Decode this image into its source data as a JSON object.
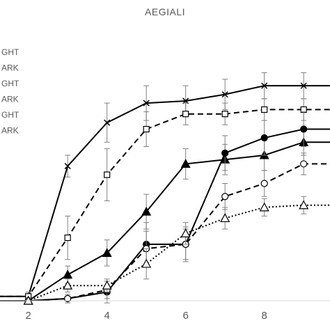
{
  "chart_data": {
    "type": "line",
    "title": "AEGIALI",
    "xlabel": "",
    "ylabel": "",
    "xlim": [
      1.4,
      9.8
    ],
    "ylim": [
      0,
      1.0
    ],
    "x_ticks": [
      "2",
      "4",
      "6",
      "8"
    ],
    "legend": {
      "position": "top-left",
      "entries": [
        "GHT",
        "ARK",
        "GHT",
        "ARK",
        "GHT",
        "ARK"
      ]
    },
    "grid": false,
    "series": [
      {
        "style": "solid",
        "marker": "x",
        "color": "#000000",
        "x": [
          1,
          2,
          3,
          4,
          5,
          6,
          7,
          8,
          9,
          10
        ],
        "y": [
          0.02,
          0.02,
          0.62,
          0.82,
          0.91,
          0.92,
          0.95,
          0.99,
          0.99,
          0.99
        ],
        "err": [
          0,
          0.02,
          0.05,
          0.09,
          0.08,
          0.07,
          0.07,
          0.06,
          0.06,
          0.05
        ]
      },
      {
        "style": "dashed",
        "marker": "square",
        "color": "#000000",
        "x": [
          1,
          2,
          3,
          4,
          5,
          6,
          7,
          8,
          9,
          10
        ],
        "y": [
          0.02,
          0.02,
          0.29,
          0.58,
          0.79,
          0.86,
          0.86,
          0.88,
          0.88,
          0.88
        ],
        "err": [
          0,
          0.02,
          0.1,
          0.12,
          0.08,
          0.05,
          0.05,
          0.05,
          0.05,
          0.05
        ]
      },
      {
        "style": "solid",
        "marker": "triangle-filled",
        "color": "#000000",
        "x": [
          1,
          2,
          3,
          4,
          5,
          6,
          7,
          8,
          9,
          10
        ],
        "y": [
          0.0,
          0.0,
          0.12,
          0.22,
          0.41,
          0.63,
          0.65,
          0.67,
          0.73,
          0.73
        ],
        "err": [
          0,
          0.01,
          0.04,
          0.06,
          0.08,
          0.07,
          0.07,
          0.07,
          0.06,
          0.06
        ]
      },
      {
        "style": "solid",
        "marker": "circle-filled",
        "color": "#000000",
        "x": [
          1,
          2,
          3,
          4,
          5,
          6,
          7,
          8,
          9,
          10
        ],
        "y": [
          0.0,
          0.0,
          0.01,
          0.04,
          0.26,
          0.26,
          0.68,
          0.75,
          0.79,
          0.79
        ],
        "err": [
          0,
          0.01,
          0.02,
          0.05,
          0.1,
          0.08,
          0.08,
          0.08,
          0.08,
          0.08
        ]
      },
      {
        "style": "dashed",
        "marker": "circle-open",
        "color": "#000000",
        "x": [
          1,
          2,
          3,
          4,
          5,
          6,
          7,
          8,
          9,
          10
        ],
        "y": [
          0.0,
          0.0,
          0.01,
          0.05,
          0.24,
          0.26,
          0.48,
          0.54,
          0.63,
          0.63
        ],
        "err": [
          0,
          0.01,
          0.01,
          0.04,
          0.08,
          0.07,
          0.06,
          0.06,
          0.05,
          0.05
        ]
      },
      {
        "style": "dotted",
        "marker": "triangle-open",
        "color": "#000000",
        "x": [
          1,
          2,
          3,
          4,
          5,
          6,
          7,
          8,
          9,
          10
        ],
        "y": [
          0.0,
          0.0,
          0.07,
          0.07,
          0.17,
          0.31,
          0.38,
          0.43,
          0.44,
          0.44
        ],
        "err": [
          0,
          0.01,
          0.03,
          0.03,
          0.07,
          0.05,
          0.05,
          0.04,
          0.04,
          0.04
        ]
      }
    ]
  }
}
